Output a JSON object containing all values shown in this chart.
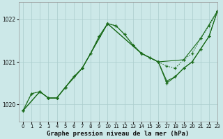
{
  "title": "Graphe pression niveau de la mer (hPa)",
  "background_color": "#cce8e8",
  "grid_color": "#aacccc",
  "line_color": "#1a6b1a",
  "xlim": [
    -0.5,
    23
  ],
  "ylim": [
    1019.6,
    1022.4
  ],
  "yticks": [
    1020,
    1021,
    1022
  ],
  "xticks": [
    0,
    1,
    2,
    3,
    4,
    5,
    6,
    7,
    8,
    9,
    10,
    11,
    12,
    13,
    14,
    15,
    16,
    17,
    18,
    19,
    20,
    21,
    22,
    23
  ],
  "s1_x": [
    0,
    1,
    2,
    3,
    4,
    5,
    6,
    7,
    8,
    9,
    10,
    11,
    12,
    13,
    14,
    15,
    16,
    17,
    18,
    19,
    20,
    21,
    22,
    23
  ],
  "s1_y": [
    1019.85,
    1020.25,
    1020.3,
    1020.15,
    1020.15,
    1020.4,
    1020.65,
    1020.85,
    1021.2,
    1021.6,
    1021.9,
    1021.85,
    1021.65,
    1021.4,
    1021.2,
    1021.1,
    1021.0,
    1020.9,
    1020.85,
    1021.05,
    1021.2,
    1021.55,
    1021.85,
    1022.2
  ],
  "s2_x": [
    0,
    1,
    2,
    3,
    4,
    5,
    6,
    7,
    8,
    9,
    10,
    11,
    12,
    13,
    14,
    15,
    16,
    17,
    18,
    19,
    20,
    21,
    22,
    23
  ],
  "s2_y": [
    1019.85,
    1020.25,
    1020.3,
    1020.15,
    1020.15,
    1020.4,
    1020.65,
    1020.85,
    1021.2,
    1021.6,
    1021.9,
    1021.85,
    1021.65,
    1021.4,
    1021.2,
    1021.1,
    1021.0,
    1020.55,
    1020.65,
    1020.85,
    1021.0,
    1021.3,
    1021.6,
    1022.2
  ],
  "s3_x": [
    0,
    2,
    3,
    4,
    5,
    7,
    10,
    14,
    16,
    19,
    21,
    23
  ],
  "s3_y": [
    1019.85,
    1020.3,
    1020.15,
    1020.15,
    1020.4,
    1020.85,
    1021.9,
    1021.2,
    1021.0,
    1021.05,
    1021.55,
    1022.2
  ],
  "s4_x": [
    0,
    2,
    3,
    4,
    5,
    7,
    10,
    14,
    16,
    17,
    18,
    19,
    20,
    21,
    22,
    23
  ],
  "s4_y": [
    1019.85,
    1020.3,
    1020.15,
    1020.15,
    1020.4,
    1020.85,
    1021.9,
    1021.2,
    1021.0,
    1020.5,
    1020.65,
    1020.85,
    1021.0,
    1021.3,
    1021.6,
    1022.2
  ]
}
